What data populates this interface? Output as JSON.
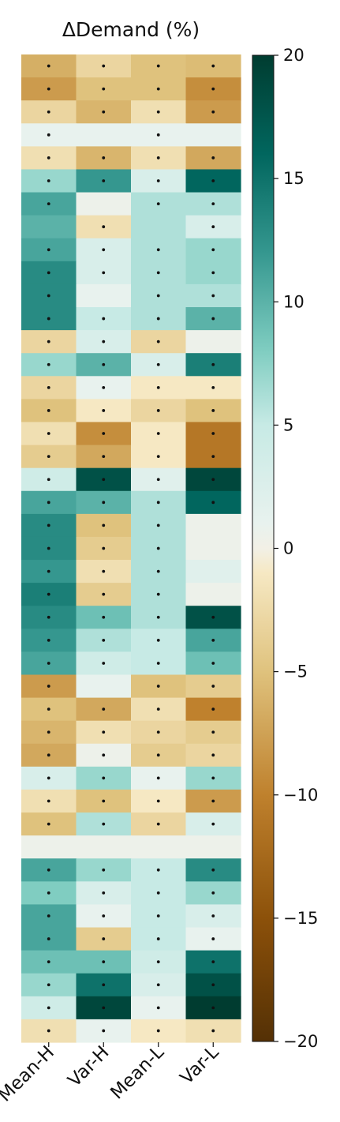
{
  "chart_data": {
    "type": "heatmap",
    "title": "ΔDemand (%)",
    "columns": [
      "Mean-H",
      "Var-H",
      "Mean-L",
      "Var-L"
    ],
    "colorbar": {
      "min": -20,
      "max": 20,
      "ticks": [
        20,
        15,
        10,
        5,
        0,
        -5,
        -10,
        -15,
        -20
      ],
      "tick_labels": [
        "20",
        "15",
        "10",
        "5",
        "0",
        "−5",
        "−10",
        "−15",
        "−20"
      ]
    },
    "grid": false,
    "markers": "dot",
    "rows": [
      {
        "values": [
          -6.5,
          -3,
          -5,
          -5.5
        ],
        "dots": [
          true,
          true,
          true,
          true
        ]
      },
      {
        "values": [
          -8,
          -5,
          -5,
          -9
        ],
        "dots": [
          true,
          true,
          true,
          true
        ]
      },
      {
        "values": [
          -3,
          -6,
          -2,
          -8
        ],
        "dots": [
          true,
          true,
          true,
          true
        ]
      },
      {
        "values": [
          1,
          1,
          1,
          1
        ],
        "dots": [
          true,
          false,
          true,
          false
        ]
      },
      {
        "values": [
          -2,
          -6,
          -2,
          -7
        ],
        "dots": [
          true,
          true,
          true,
          true
        ]
      },
      {
        "values": [
          7,
          12,
          3,
          16
        ],
        "dots": [
          true,
          true,
          true,
          true
        ]
      },
      {
        "values": [
          11,
          0.5,
          6,
          6
        ],
        "dots": [
          true,
          false,
          true,
          true
        ]
      },
      {
        "values": [
          10,
          -2,
          6,
          3
        ],
        "dots": [
          false,
          true,
          false,
          true
        ]
      },
      {
        "values": [
          11,
          3,
          6,
          7
        ],
        "dots": [
          true,
          true,
          true,
          true
        ]
      },
      {
        "values": [
          13,
          3,
          6,
          7
        ],
        "dots": [
          true,
          true,
          true,
          true
        ]
      },
      {
        "values": [
          13,
          1,
          6,
          6
        ],
        "dots": [
          true,
          false,
          true,
          true
        ]
      },
      {
        "values": [
          13,
          5,
          6,
          10
        ],
        "dots": [
          true,
          true,
          true,
          true
        ]
      },
      {
        "values": [
          -3,
          3,
          -3,
          0.5
        ],
        "dots": [
          true,
          true,
          true,
          false
        ]
      },
      {
        "values": [
          7,
          10,
          3,
          14
        ],
        "dots": [
          true,
          true,
          true,
          true
        ]
      },
      {
        "values": [
          -3,
          1,
          -1,
          -1
        ],
        "dots": [
          true,
          true,
          true,
          true
        ]
      },
      {
        "values": [
          -5,
          -1,
          -3,
          -5
        ],
        "dots": [
          true,
          true,
          true,
          true
        ]
      },
      {
        "values": [
          -2,
          -9,
          -1,
          -11
        ],
        "dots": [
          true,
          true,
          true,
          true
        ]
      },
      {
        "values": [
          -4,
          -7,
          -1,
          -11
        ],
        "dots": [
          true,
          true,
          true,
          true
        ]
      },
      {
        "values": [
          4,
          18,
          2,
          19
        ],
        "dots": [
          true,
          true,
          true,
          true
        ]
      },
      {
        "values": [
          11,
          10,
          6,
          16
        ],
        "dots": [
          true,
          true,
          true,
          true
        ]
      },
      {
        "values": [
          13,
          -5,
          6,
          0.5
        ],
        "dots": [
          true,
          true,
          true,
          false
        ]
      },
      {
        "values": [
          13,
          -4,
          6,
          0.5
        ],
        "dots": [
          true,
          true,
          true,
          false
        ]
      },
      {
        "values": [
          12,
          -2,
          6,
          2
        ],
        "dots": [
          true,
          true,
          true,
          false
        ]
      },
      {
        "values": [
          14,
          -4,
          6,
          0.5
        ],
        "dots": [
          true,
          true,
          true,
          false
        ]
      },
      {
        "values": [
          13,
          9,
          6,
          18
        ],
        "dots": [
          true,
          true,
          true,
          true
        ]
      },
      {
        "values": [
          12,
          6,
          5,
          11
        ],
        "dots": [
          true,
          true,
          true,
          true
        ]
      },
      {
        "values": [
          11,
          4,
          5,
          9
        ],
        "dots": [
          true,
          true,
          true,
          true
        ]
      },
      {
        "values": [
          -8,
          1,
          -5,
          -4
        ],
        "dots": [
          true,
          false,
          true,
          true
        ]
      },
      {
        "values": [
          -5,
          -7,
          -2,
          -10
        ],
        "dots": [
          true,
          true,
          true,
          true
        ]
      },
      {
        "values": [
          -6,
          -2,
          -3,
          -4
        ],
        "dots": [
          true,
          true,
          true,
          true
        ]
      },
      {
        "values": [
          -7,
          0.5,
          -4,
          -3
        ],
        "dots": [
          true,
          true,
          true,
          true
        ]
      },
      {
        "values": [
          3,
          7,
          1,
          7
        ],
        "dots": [
          true,
          true,
          true,
          true
        ]
      },
      {
        "values": [
          -2,
          -5,
          -1,
          -8
        ],
        "dots": [
          true,
          true,
          true,
          true
        ]
      },
      {
        "values": [
          -5,
          6,
          -3,
          3
        ],
        "dots": [
          true,
          true,
          true,
          true
        ]
      },
      {
        "values": [
          0.5,
          0.5,
          0.5,
          0.5
        ],
        "dots": [
          false,
          false,
          false,
          false
        ]
      },
      {
        "values": [
          11,
          7,
          5,
          13
        ],
        "dots": [
          true,
          true,
          true,
          true
        ]
      },
      {
        "values": [
          8,
          3,
          5,
          7
        ],
        "dots": [
          true,
          true,
          true,
          true
        ]
      },
      {
        "values": [
          11,
          1,
          5,
          3
        ],
        "dots": [
          true,
          true,
          true,
          true
        ]
      },
      {
        "values": [
          11,
          -4,
          5,
          1
        ],
        "dots": [
          true,
          true,
          true,
          true
        ]
      },
      {
        "values": [
          9,
          9,
          4,
          15
        ],
        "dots": [
          true,
          true,
          true,
          true
        ]
      },
      {
        "values": [
          7,
          15,
          3,
          18
        ],
        "dots": [
          true,
          true,
          true,
          true
        ]
      },
      {
        "values": [
          4,
          19,
          1,
          20
        ],
        "dots": [
          true,
          true,
          true,
          true
        ]
      },
      {
        "values": [
          -2,
          1,
          -1,
          -2
        ],
        "dots": [
          true,
          true,
          true,
          true
        ]
      }
    ]
  }
}
